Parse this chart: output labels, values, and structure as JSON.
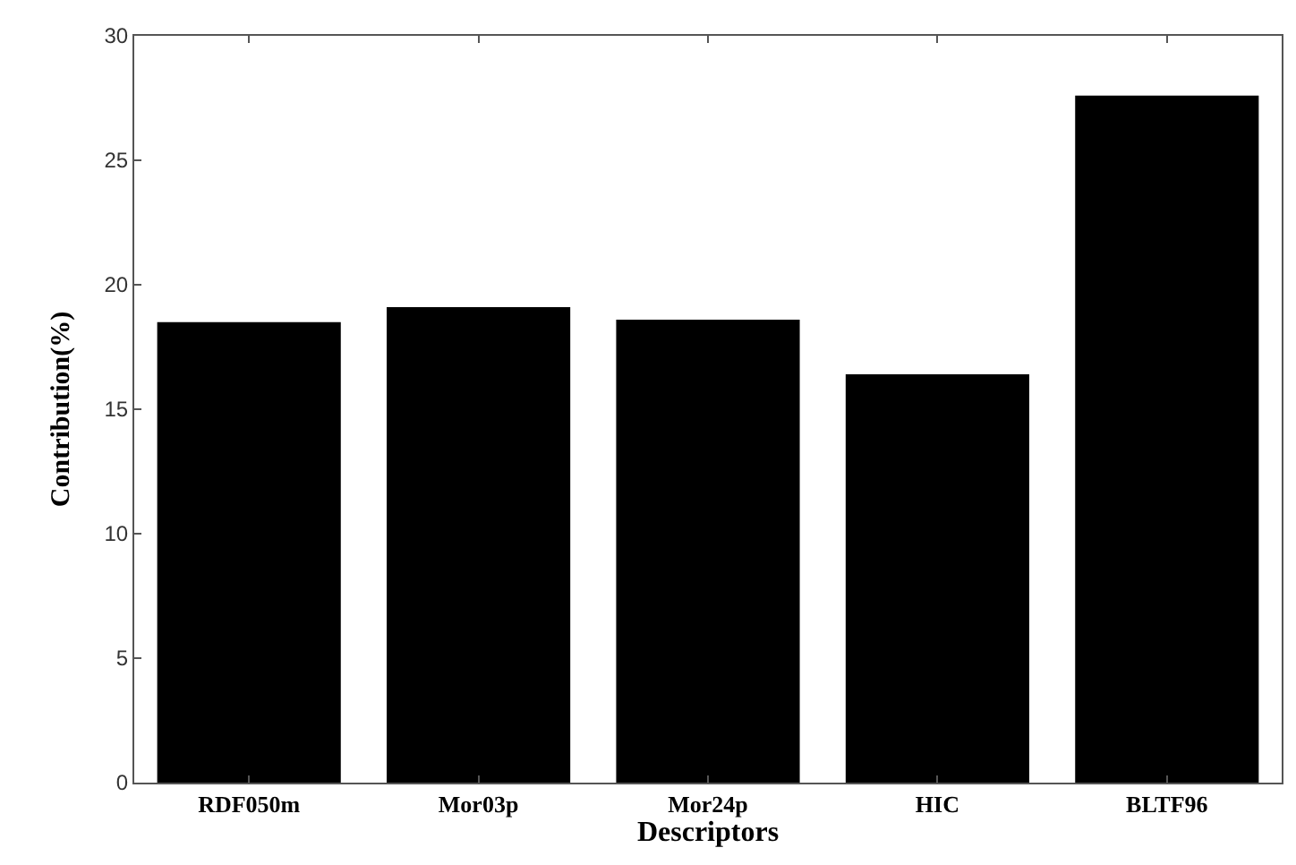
{
  "chart_data": {
    "type": "bar",
    "xlabel": "Descriptors",
    "ylabel": "Contribution(%)",
    "categories": [
      "RDF050m",
      "Mor03p",
      "Mor24p",
      "HIC",
      "BLTF96"
    ],
    "values": [
      18.5,
      19.1,
      18.6,
      16.4,
      27.6
    ],
    "color": "#000000",
    "ylim": [
      0,
      30
    ],
    "yticks": [
      0,
      5,
      10,
      15,
      20,
      25,
      30
    ],
    "legend": false
  }
}
